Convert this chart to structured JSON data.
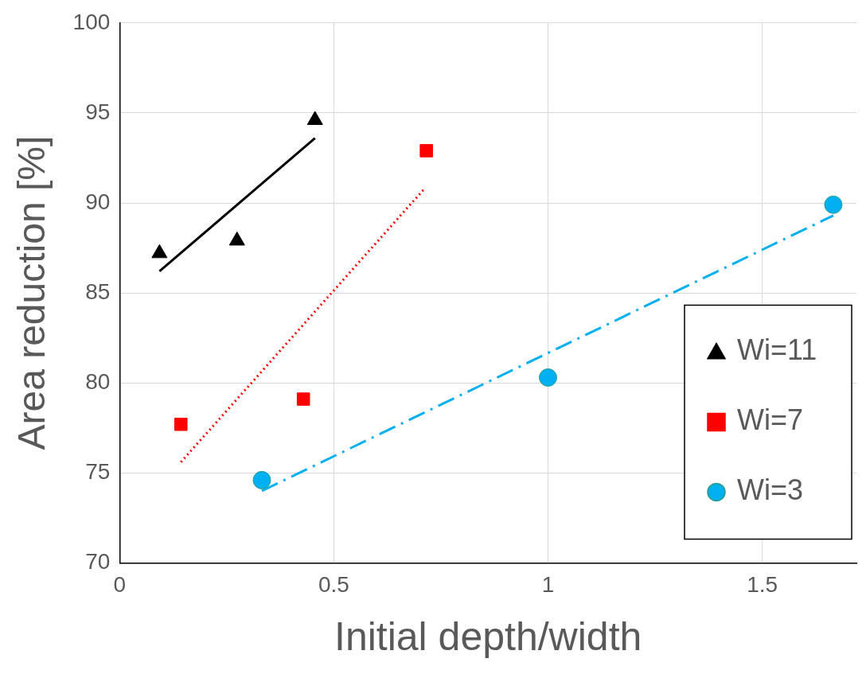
{
  "chart_data": {
    "type": "scatter",
    "xlabel": "Initial depth/width",
    "ylabel": "Area reduction [%]",
    "xlim": [
      0,
      1.72
    ],
    "xticks": [
      0,
      0.5,
      1,
      1.5
    ],
    "ylim": [
      70,
      100
    ],
    "yticks": [
      70,
      75,
      80,
      85,
      90,
      95,
      100
    ],
    "grid": true,
    "legend": "right",
    "series": [
      {
        "name": "Wi=11",
        "color": "#000000",
        "marker": "triangle",
        "x": [
          0.093,
          0.274,
          0.456
        ],
        "values": [
          87.2,
          87.9,
          94.6
        ]
      },
      {
        "name": "Wi=7",
        "color": "#ff0000",
        "marker": "square",
        "x": [
          0.143,
          0.429,
          0.716
        ],
        "values": [
          77.7,
          79.1,
          92.9
        ]
      },
      {
        "name": "Wi=3",
        "color": "#00b0f0",
        "marker": "circle",
        "x": [
          0.332,
          1.0,
          1.666
        ],
        "values": [
          74.6,
          80.3,
          89.9
        ]
      },
      {
        "type": "line",
        "color": "#000000",
        "line_style": "solid",
        "x": [
          0.093,
          0.456
        ],
        "values": [
          86.2,
          93.6
        ]
      },
      {
        "type": "line",
        "color": "#ff0000",
        "line_style": "dotted",
        "x": [
          0.143,
          0.71
        ],
        "values": [
          75.6,
          90.75
        ]
      },
      {
        "type": "line",
        "color": "#00b0f0",
        "line_style": "dashdot",
        "x": [
          0.332,
          1.666
        ],
        "values": [
          74.0,
          89.3
        ]
      }
    ]
  }
}
